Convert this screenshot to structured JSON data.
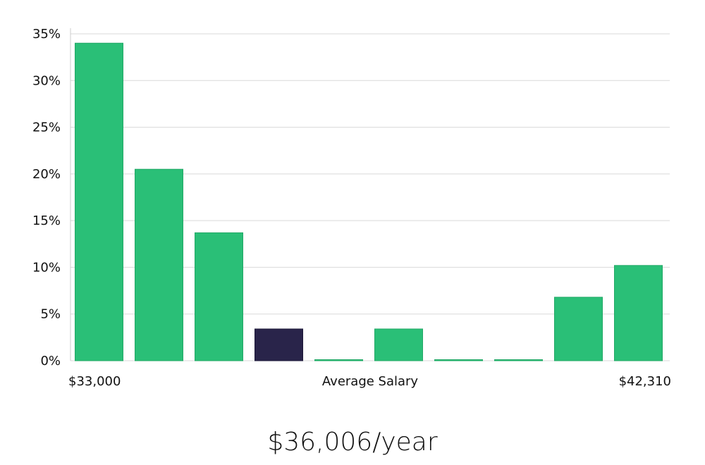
{
  "chart_data": {
    "type": "bar",
    "categories": [
      "1",
      "2",
      "3",
      "4",
      "5",
      "6",
      "7",
      "8",
      "9",
      "10"
    ],
    "values": [
      34,
      20.5,
      13.7,
      3.4,
      0,
      3.4,
      0,
      0,
      6.8,
      10.2
    ],
    "highlight_index": 3,
    "ylim": [
      0,
      35
    ],
    "yticks": [
      0,
      5,
      10,
      15,
      20,
      25,
      30,
      35
    ],
    "ytick_format": "%",
    "x_min_label": "$33,000",
    "x_max_label": "$42,310",
    "xlabel": "Average Salary",
    "grid": true,
    "colors": {
      "bar": "#2ABF77",
      "highlight": "#29244A",
      "grid": "#D9D9D9",
      "axis": "#CCCCCC",
      "text": "#111111"
    }
  },
  "caption": "$36,006/year"
}
